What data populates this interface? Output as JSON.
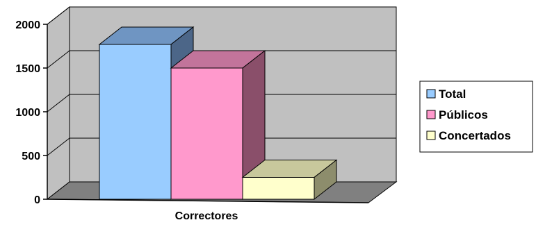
{
  "chart_data": {
    "type": "bar",
    "style": "3d-column",
    "categories": [
      "Correctores"
    ],
    "series": [
      {
        "name": "Total",
        "values": [
          1770
        ]
      },
      {
        "name": "Públicos",
        "values": [
          1500
        ]
      },
      {
        "name": "Concertados",
        "values": [
          250
        ]
      }
    ],
    "yticks": [
      "0",
      "500",
      "1000",
      "1500",
      "2000"
    ],
    "ylim": [
      0,
      2000
    ],
    "grid": true,
    "legend": "right",
    "colors": {
      "Total": {
        "front": "#99ccff",
        "top": "#6f95c2",
        "side": "#4c6688"
      },
      "Públicos": {
        "front": "#ff99cc",
        "top": "#c2749b",
        "side": "#8a4f6a"
      },
      "Concertados": {
        "front": "#ffffcc",
        "top": "#c8c89c",
        "side": "#8d8d6c"
      },
      "wall": "#c0c0c0",
      "floor": "#808080"
    }
  }
}
